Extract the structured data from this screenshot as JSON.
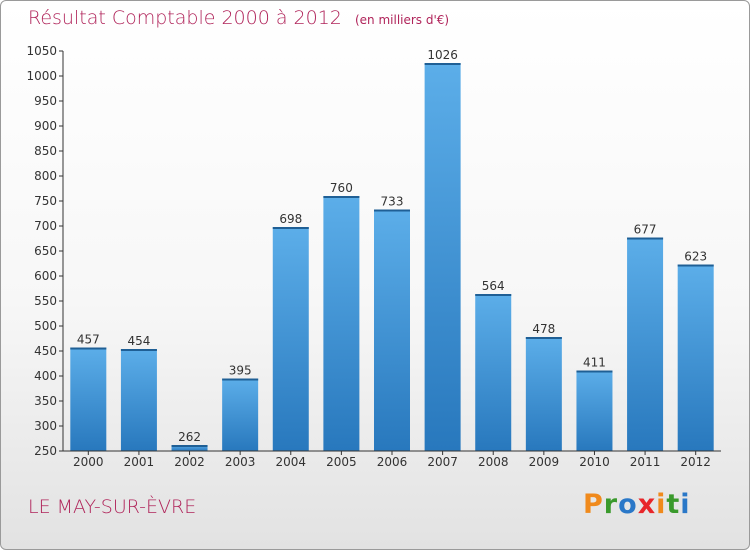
{
  "title": "Résultat Comptable 2000 à 2012",
  "unit": "(en milliers d'€)",
  "town": "LE MAY-SUR-ÈVRE",
  "logo": {
    "text": "Proxiti",
    "letters": [
      {
        "char": "P",
        "color": "#f08a1c"
      },
      {
        "char": "r",
        "color": "#3a9a2c"
      },
      {
        "char": "o",
        "color": "#2a78c8"
      },
      {
        "char": "x",
        "color": "#e8262a"
      },
      {
        "char": "i",
        "color": "#f08a1c"
      },
      {
        "char": "t",
        "color": "#3a9a2c"
      },
      {
        "char": "i",
        "color": "#2a78c8"
      }
    ]
  },
  "colors": {
    "title": "#b0245a",
    "bar_light": "#5aa9e6",
    "bar_dark": "#2a7cc0",
    "axis": "#333333"
  },
  "chart_data": {
    "type": "bar",
    "title": "Résultat Comptable 2000 à 2012",
    "subtitle": "(en milliers d'€)",
    "xlabel": "",
    "ylabel": "",
    "categories": [
      "2000",
      "2001",
      "2002",
      "2003",
      "2004",
      "2005",
      "2006",
      "2007",
      "2008",
      "2009",
      "2010",
      "2011",
      "2012"
    ],
    "values": [
      457,
      454,
      262,
      395,
      698,
      760,
      733,
      1026,
      564,
      478,
      411,
      677,
      623
    ],
    "ylim": [
      250,
      1050
    ],
    "yticks": [
      250,
      300,
      350,
      400,
      450,
      500,
      550,
      600,
      650,
      700,
      750,
      800,
      850,
      900,
      950,
      1000,
      1050
    ],
    "grid": false,
    "legend": "none"
  }
}
